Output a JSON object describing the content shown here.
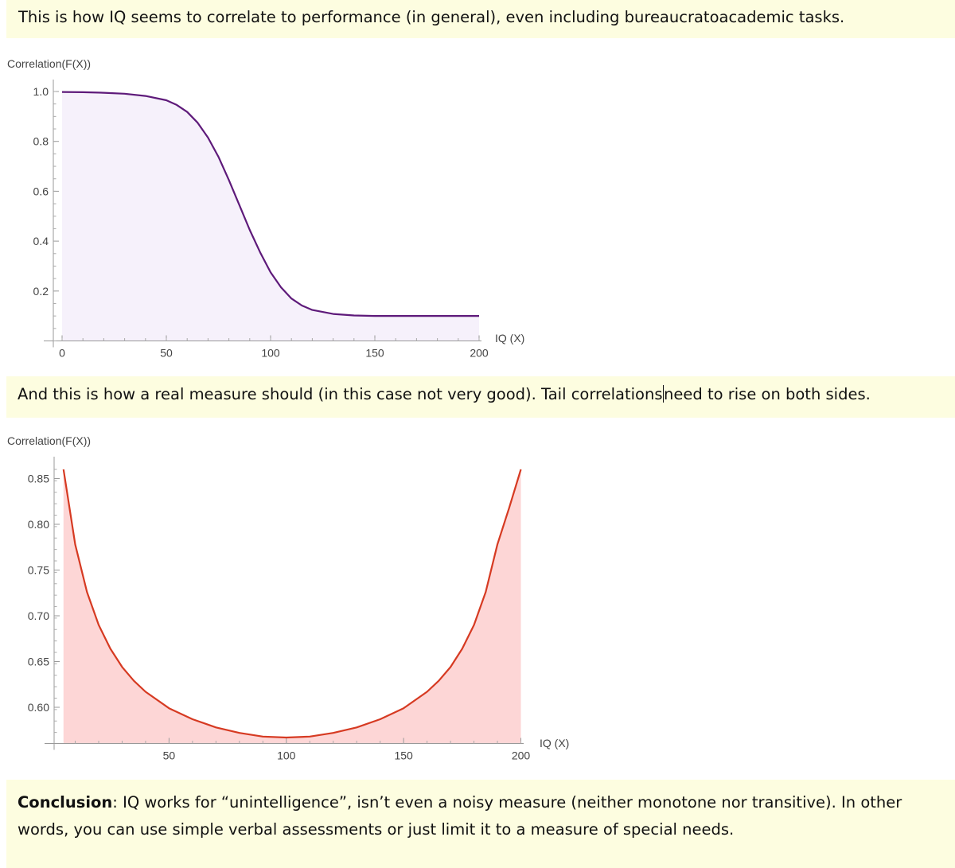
{
  "notes": {
    "intro": "This is how IQ seems to correlate to performance (in general), even including  bureaucratoacademic tasks.",
    "middle_before_cursor": "And this is how a real measure should (in this case not very good).  Tail correlations",
    "middle_after_cursor": "need to rise on both sides.",
    "conclusion_label": "Conclusion",
    "conclusion_text": ": IQ works for “unintelligence”, isn’t even a noisy measure (neither monotone nor transitive). In other words, you can use simple verbal assessments or just limit it to a measure of special needs."
  },
  "chart_data": [
    {
      "type": "area",
      "ylabel": "Correlation(F(X))",
      "xlabel": "IQ (X)",
      "xlim": [
        0,
        200
      ],
      "ylim": [
        0,
        1.0
      ],
      "xticks": [
        0,
        50,
        100,
        150,
        200
      ],
      "yticks": [
        0.2,
        0.4,
        0.6,
        0.8,
        1.0
      ],
      "ytick_labels": [
        "0.2",
        "0.4",
        "0.6",
        "0.8",
        "1.0"
      ],
      "line_color": "#5e1a7a",
      "fill_color": "#f6f1fb",
      "series": [
        {
          "x": [
            0,
            10,
            20,
            30,
            40,
            50,
            55,
            60,
            65,
            70,
            75,
            80,
            85,
            90,
            95,
            100,
            105,
            110,
            115,
            120,
            130,
            140,
            150,
            160,
            170,
            180,
            190,
            200
          ],
          "values": [
            0.998,
            0.997,
            0.995,
            0.991,
            0.982,
            0.965,
            0.946,
            0.918,
            0.875,
            0.815,
            0.738,
            0.645,
            0.545,
            0.445,
            0.355,
            0.275,
            0.215,
            0.17,
            0.142,
            0.124,
            0.108,
            0.102,
            0.1,
            0.1,
            0.1,
            0.1,
            0.1,
            0.1
          ]
        }
      ]
    },
    {
      "type": "area",
      "ylabel": "Correlation(F(X))",
      "xlabel": "IQ (X)",
      "xlim": [
        1,
        200
      ],
      "ylim": [
        0.56,
        0.86
      ],
      "xticks": [
        50,
        100,
        150,
        200
      ],
      "yticks": [
        0.6,
        0.65,
        0.7,
        0.75,
        0.8,
        0.85
      ],
      "ytick_labels": [
        "0.60",
        "0.65",
        "0.70",
        "0.75",
        "0.80",
        "0.85"
      ],
      "line_color": "#d63a22",
      "fill_color": "#fdd6d6",
      "series": [
        {
          "x": [
            5,
            10,
            15,
            20,
            25,
            30,
            35,
            40,
            50,
            60,
            70,
            80,
            90,
            100,
            110,
            120,
            130,
            140,
            150,
            160,
            165,
            170,
            175,
            180,
            185,
            190,
            195,
            200
          ],
          "values": [
            0.86,
            0.778,
            0.726,
            0.69,
            0.664,
            0.644,
            0.629,
            0.617,
            0.599,
            0.587,
            0.578,
            0.572,
            0.568,
            0.567,
            0.568,
            0.572,
            0.578,
            0.587,
            0.599,
            0.617,
            0.629,
            0.644,
            0.664,
            0.69,
            0.726,
            0.778,
            0.818,
            0.86
          ]
        }
      ]
    }
  ]
}
